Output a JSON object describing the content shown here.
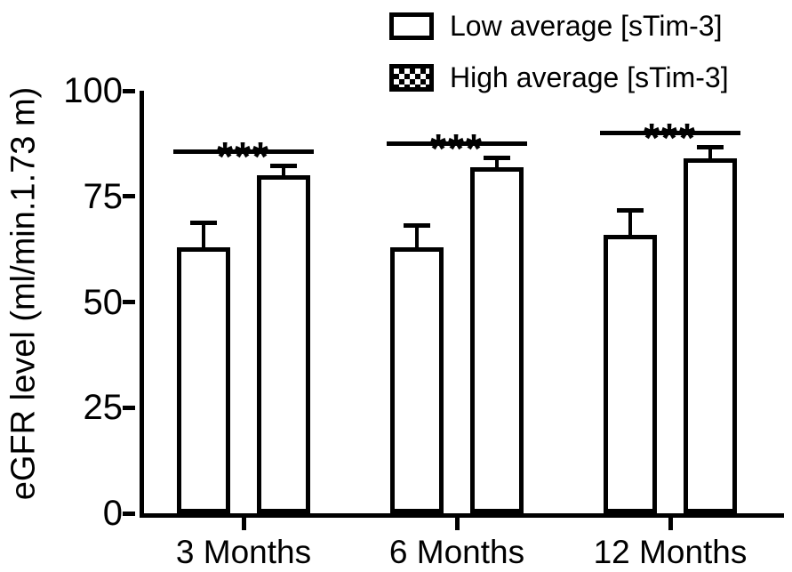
{
  "legend": {
    "items": [
      {
        "label": "Low average [sTim-3]",
        "fill": "white"
      },
      {
        "label": "High average [sTim-3]",
        "fill": "checker"
      }
    ]
  },
  "chart_data": {
    "type": "bar",
    "title": "",
    "xlabel": "",
    "ylabel": "eGFR level (ml/min.1.73 m)",
    "ylim": [
      0,
      100
    ],
    "yticks": [
      0,
      25,
      50,
      75,
      100
    ],
    "categories": [
      "3 Months",
      "6 Months",
      "12 Months"
    ],
    "series": [
      {
        "name": "High average [sTim-3]",
        "fill": "checker",
        "values": [
          63,
          63,
          66
        ],
        "errors": [
          6,
          5.5,
          6
        ]
      },
      {
        "name": "Low average [sTim-3]",
        "fill": "white",
        "values": [
          80,
          82,
          84
        ],
        "errors": [
          2.5,
          2.5,
          3
        ]
      }
    ],
    "significance": [
      {
        "category": "3 Months",
        "label": "***"
      },
      {
        "category": "6 Months",
        "label": "***"
      },
      {
        "category": "12 Months",
        "label": "***"
      }
    ],
    "legend_position": "top-right",
    "grid": false,
    "bar_outline": true,
    "colors": {
      "ink": "#000000",
      "background": "#ffffff"
    }
  }
}
